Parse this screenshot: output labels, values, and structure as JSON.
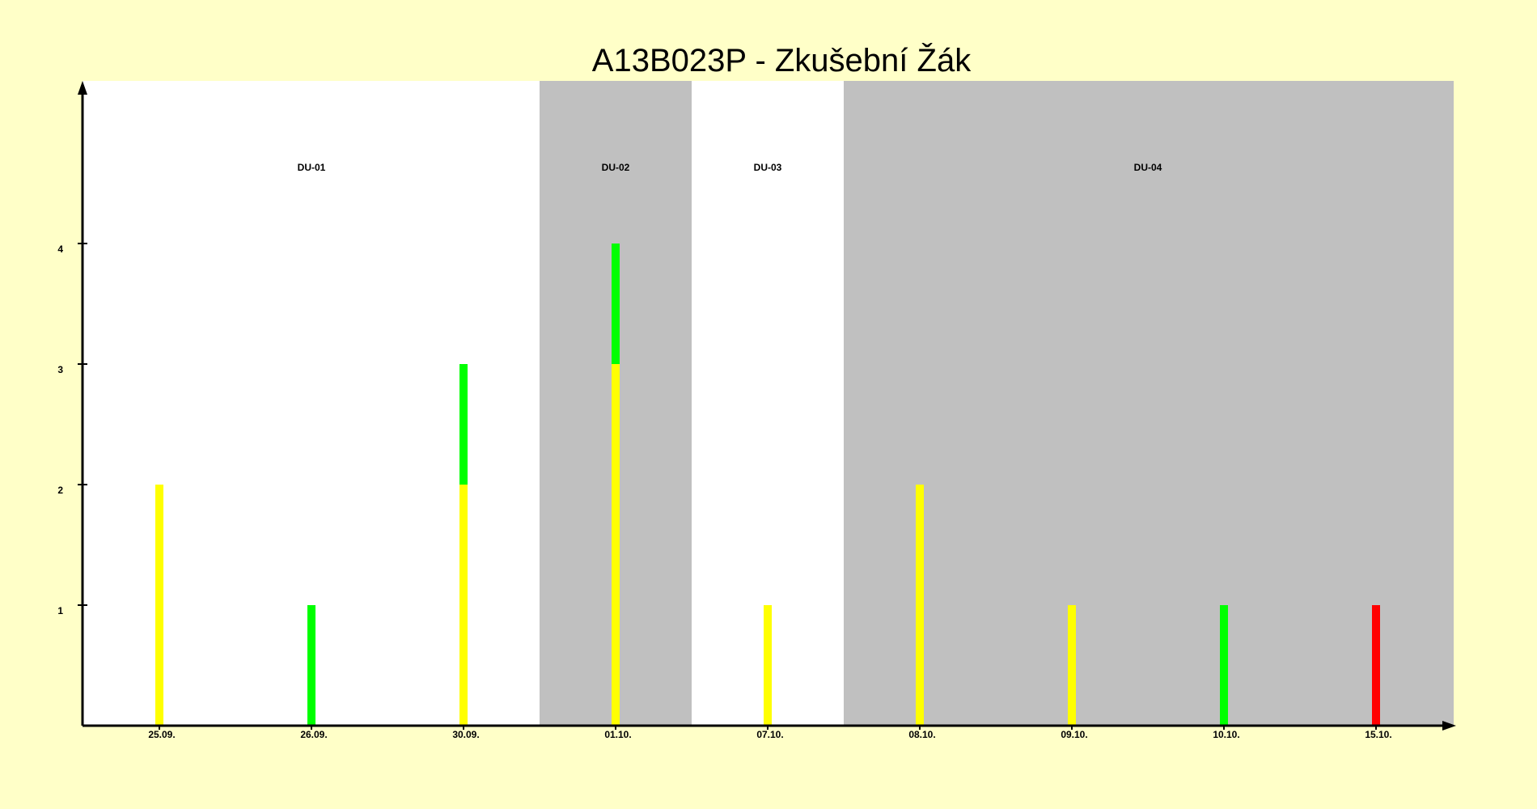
{
  "chart_data": {
    "type": "bar",
    "title": "A13B023P - Zkušební Žák",
    "xlabel": "",
    "ylabel": "",
    "ylim": [
      0,
      5
    ],
    "yticks": [
      1,
      2,
      3,
      4
    ],
    "categories": [
      "25.09.",
      "26.09.",
      "30.09.",
      "01.10.",
      "07.10.",
      "08.10.",
      "09.10.",
      "10.10.",
      "15.10."
    ],
    "series": [
      {
        "color": "#FFFF00",
        "values": [
          2,
          0,
          2,
          3,
          1,
          2,
          1,
          0,
          0
        ]
      },
      {
        "color": "#00FF00",
        "values": [
          0,
          1,
          1,
          1,
          0,
          0,
          0,
          1,
          0
        ]
      },
      {
        "color": "#FF0000",
        "values": [
          0,
          0,
          0,
          0,
          0,
          0,
          0,
          0,
          1
        ]
      }
    ],
    "regions": [
      {
        "label": "DU-01",
        "start": 0,
        "end": 2,
        "shaded": false
      },
      {
        "label": "DU-02",
        "start": 3,
        "end": 3,
        "shaded": true
      },
      {
        "label": "DU-03",
        "start": 4,
        "end": 4,
        "shaded": false
      },
      {
        "label": "DU-04",
        "start": 5,
        "end": 8,
        "shaded": true
      }
    ],
    "colors": {
      "page_background": "#FFFFC8",
      "plot_background": "#FFFFFF",
      "shaded_region": "#C0C0C0",
      "axis": "#000000"
    },
    "grid": false,
    "legend": "none"
  }
}
